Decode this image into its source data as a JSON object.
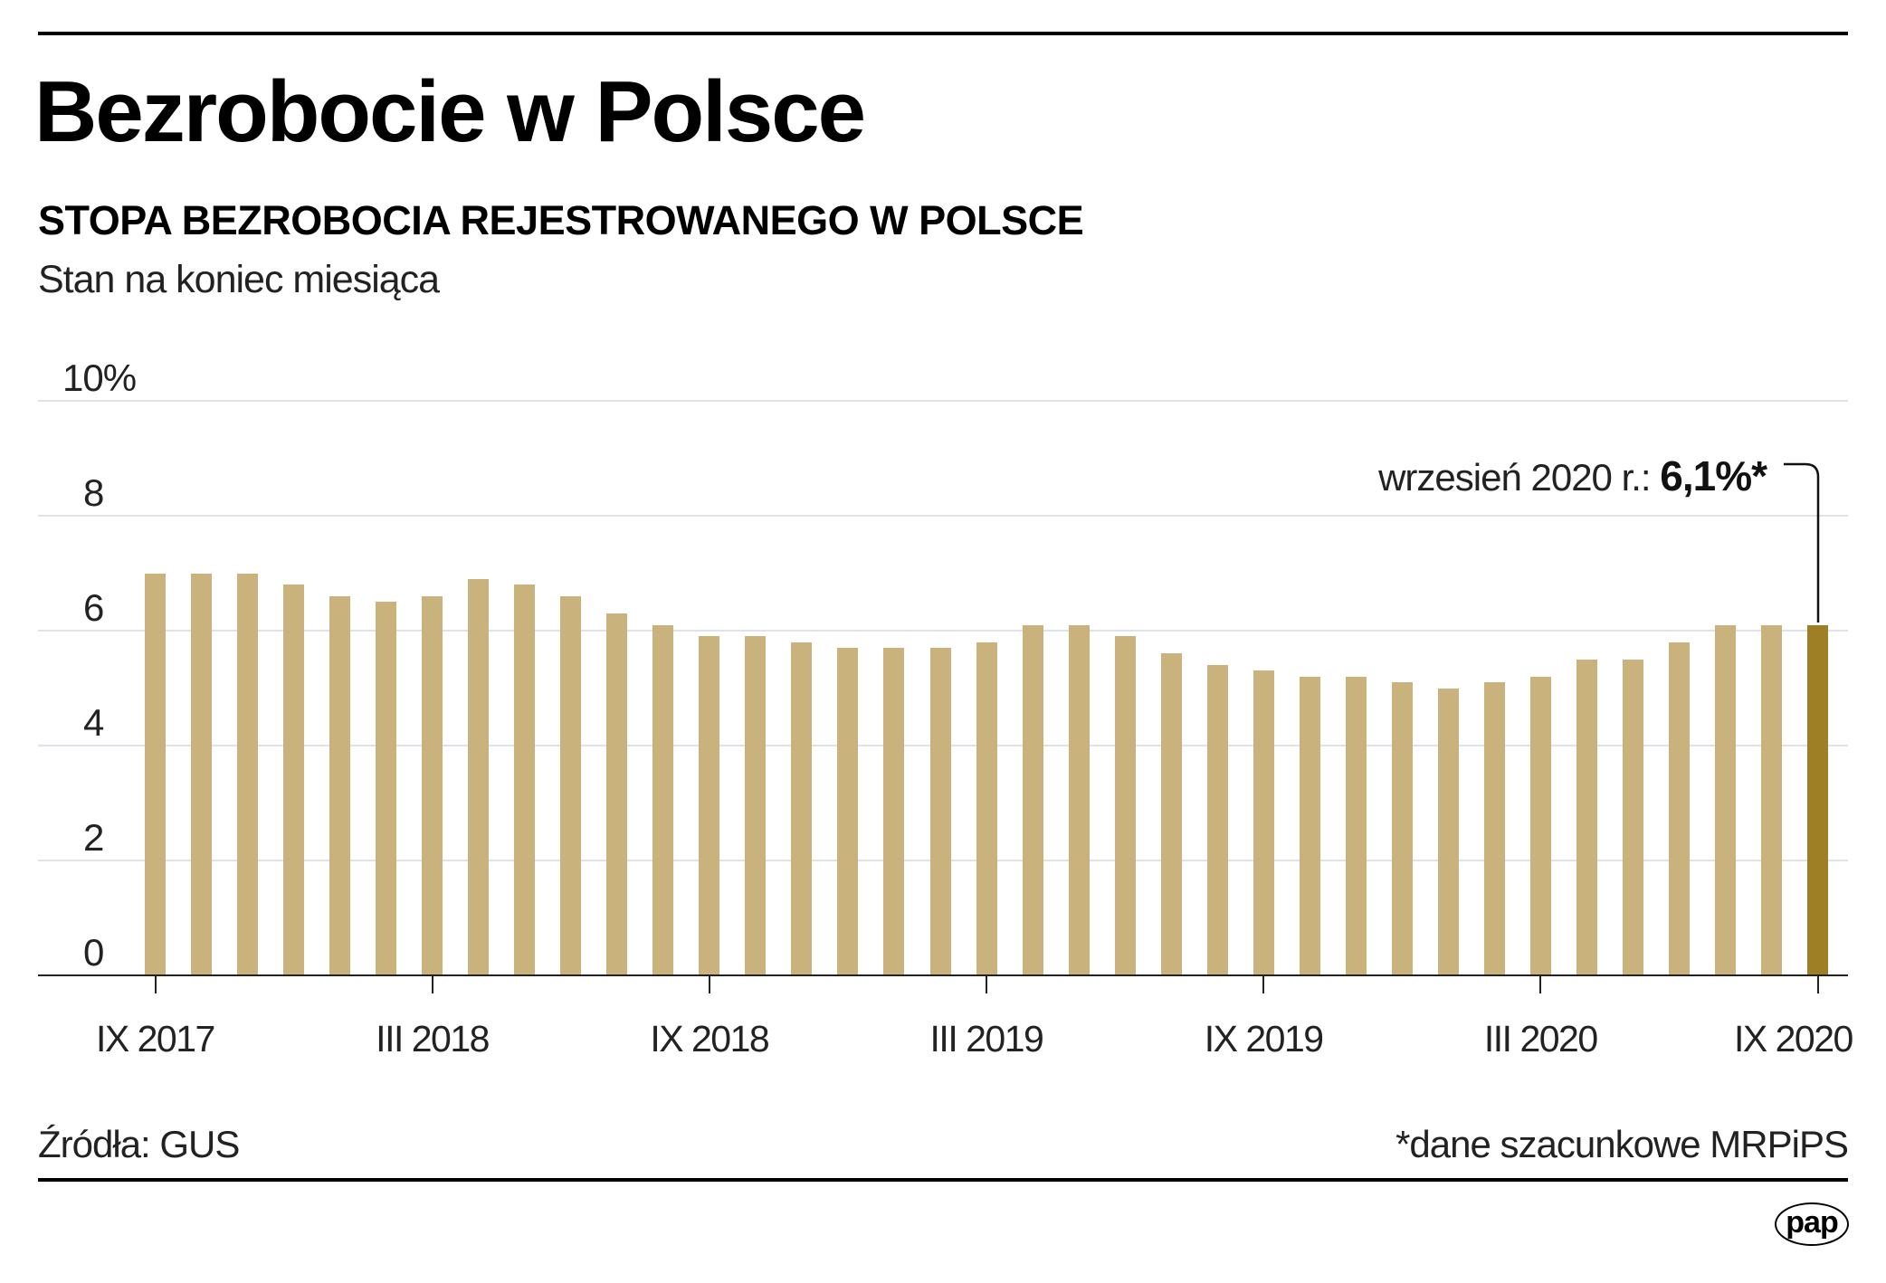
{
  "header": {
    "title": "Bezrobocie w Polsce",
    "subtitle": "STOPA BEZROBOCIA REJESTROWANEGO W POLSCE",
    "note": "Stan na koniec miesiąca"
  },
  "annotation": {
    "prefix": "wrzesień 2020 r.: ",
    "value": "6,1%*"
  },
  "footer": {
    "source": "Źródła: GUS",
    "footnote": "*dane szacunkowe MRPiPS",
    "logo": "pap"
  },
  "colors": {
    "bar": "#c9b27c",
    "bar_highlight": "#9f7f25",
    "grid": "#dde3e8",
    "axis": "#222222"
  },
  "chart_data": {
    "type": "bar",
    "title": "STOPA BEZROBOCIA REJESTROWANEGO W POLSCE",
    "subtitle": "Stan na koniec miesiąca",
    "xlabel": "",
    "ylabel": "%",
    "ylim": [
      0,
      10
    ],
    "yticks": [
      0,
      2,
      4,
      6,
      8,
      10
    ],
    "ytick_labels": [
      "0",
      "2",
      "4",
      "6",
      "8",
      "10%"
    ],
    "grid": true,
    "legend": null,
    "categories": [
      "IX 2017",
      "X 2017",
      "XI 2017",
      "XII 2017",
      "I 2018",
      "II 2018",
      "III 2018",
      "IV 2018",
      "V 2018",
      "VI 2018",
      "VII 2018",
      "VIII 2018",
      "IX 2018",
      "X 2018",
      "XI 2018",
      "XII 2018",
      "I 2019",
      "II 2019",
      "III 2019",
      "IV 2019",
      "V 2019",
      "VI 2019",
      "VII 2019",
      "VIII 2019",
      "IX 2019",
      "X 2019",
      "XI 2019",
      "XII 2019",
      "I 2020",
      "II 2020",
      "III 2020",
      "IV 2020",
      "V 2020",
      "VI 2020",
      "VII 2020",
      "VIII 2020",
      "IX 2020"
    ],
    "values": [
      7.0,
      7.0,
      7.0,
      6.8,
      6.6,
      6.5,
      6.6,
      6.9,
      6.8,
      6.6,
      6.3,
      6.1,
      5.9,
      5.9,
      5.8,
      5.7,
      5.7,
      5.7,
      5.8,
      6.1,
      6.1,
      5.9,
      5.6,
      5.4,
      5.3,
      5.2,
      5.2,
      5.1,
      5.0,
      5.1,
      5.2,
      5.5,
      5.5,
      5.8,
      6.1,
      6.1,
      6.1
    ],
    "highlight_index": 36,
    "xtick_labels": [
      {
        "index": 0,
        "label": "IX 2017"
      },
      {
        "index": 6,
        "label": "III 2018"
      },
      {
        "index": 12,
        "label": "IX 2018"
      },
      {
        "index": 18,
        "label": "III 2019"
      },
      {
        "index": 24,
        "label": "IX 2019"
      },
      {
        "index": 30,
        "label": "III 2020"
      },
      {
        "index": 36,
        "label": "IX 2020"
      }
    ],
    "annotations": [
      {
        "index": 36,
        "text": "wrzesień 2020 r.: 6,1%*"
      }
    ]
  }
}
